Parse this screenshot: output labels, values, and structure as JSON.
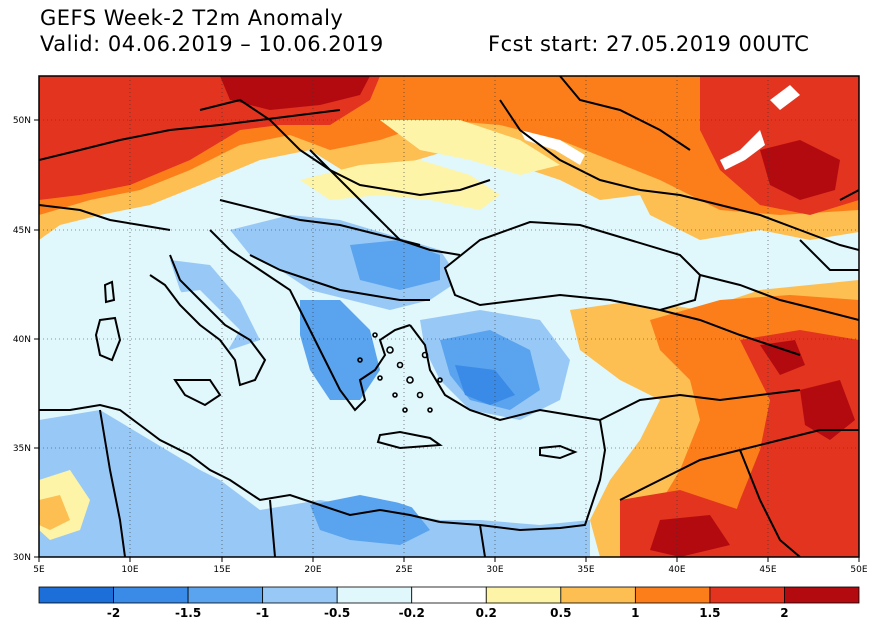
{
  "header": {
    "title": "GEFS Week-2 T2m Anomaly",
    "valid": "Valid: 04.06.2019 – 10.06.2019",
    "fcst": "Fcst start: 27.05.2019 00UTC"
  },
  "axes": {
    "lon_labels": [
      "5E",
      "10E",
      "15E",
      "20E",
      "25E",
      "30E",
      "35E",
      "40E",
      "45E",
      "50E"
    ],
    "lat_labels": [
      "30N",
      "35N",
      "40N",
      "45N",
      "50N"
    ]
  },
  "colorbar": {
    "labels": [
      "-2",
      "-1.5",
      "-1",
      "-0.5",
      "-0.2",
      "0.2",
      "0.5",
      "1",
      "1.5",
      "2"
    ],
    "colors": [
      "#1c6fd9",
      "#3a8ae8",
      "#5aa3ee",
      "#98c9f6",
      "#e0f7fc",
      "#ffffff",
      "#fef4a8",
      "#fdbe52",
      "#fb7e1a",
      "#e3341f",
      "#b30a10"
    ]
  },
  "map_colors": {
    "ocean": "#e0f7fc",
    "border": "#000000",
    "lake": "#ffffff"
  }
}
